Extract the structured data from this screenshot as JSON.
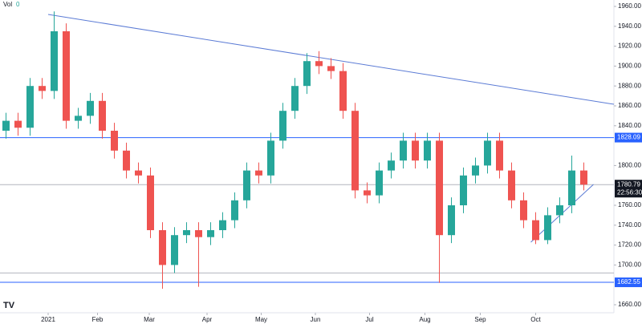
{
  "chart_data": {
    "type": "candlestick",
    "indicator": {
      "name": "Vol",
      "value": "0"
    },
    "xlim": [
      -0.5,
      50.5
    ],
    "xticks": [
      {
        "value": 3.5,
        "label": "2021"
      },
      {
        "value": 7.6,
        "label": "Feb"
      },
      {
        "value": 11.9,
        "label": "Mar"
      },
      {
        "value": 16.7,
        "label": "Apr"
      },
      {
        "value": 21.2,
        "label": "May"
      },
      {
        "value": 25.7,
        "label": "Jun"
      },
      {
        "value": 30.2,
        "label": "Jul"
      },
      {
        "value": 34.8,
        "label": "Aug"
      },
      {
        "value": 39.4,
        "label": "Sep"
      },
      {
        "value": 44.0,
        "label": "Oct"
      }
    ],
    "ylim": [
      1660,
      1960
    ],
    "yticks": [
      {
        "value": 1660,
        "label": "1660.00"
      },
      {
        "value": 1700,
        "label": "1700.00"
      },
      {
        "value": 1720,
        "label": "1720.00"
      },
      {
        "value": 1740,
        "label": "1740.00"
      },
      {
        "value": 1760,
        "label": "1760.00"
      },
      {
        "value": 1800,
        "label": "1800.00"
      },
      {
        "value": 1840,
        "label": "1840.00"
      },
      {
        "value": 1860,
        "label": "1860.00"
      },
      {
        "value": 1880,
        "label": "1880.00"
      },
      {
        "value": 1900,
        "label": "1900.00"
      },
      {
        "value": 1920,
        "label": "1920.00"
      },
      {
        "value": 1940,
        "label": "1940.00"
      },
      {
        "value": 1960,
        "label": "1960.00"
      }
    ],
    "up_color": "#26a69a",
    "down_color": "#ef5350",
    "open": [
      1835,
      1845,
      1838,
      1880,
      1875,
      1935,
      1845,
      1850,
      1865,
      1835,
      1815,
      1795,
      1790,
      1735,
      1700,
      1730,
      1735,
      1728,
      1735,
      1745,
      1765,
      1795,
      1790,
      1825,
      1855,
      1880,
      1905,
      1900,
      1895,
      1855,
      1775,
      1770,
      1795,
      1805,
      1825,
      1805,
      1825,
      1730,
      1760,
      1790,
      1800,
      1825,
      1795,
      1765,
      1745,
      1725,
      1750,
      1760,
      1795
    ],
    "high": [
      1853,
      1853,
      1888,
      1888,
      1955,
      1943,
      1858,
      1873,
      1873,
      1843,
      1823,
      1803,
      1798,
      1743,
      1738,
      1743,
      1743,
      1743,
      1753,
      1773,
      1803,
      1803,
      1833,
      1863,
      1888,
      1913,
      1915,
      1908,
      1903,
      1863,
      1783,
      1803,
      1813,
      1833,
      1833,
      1833,
      1833,
      1768,
      1798,
      1808,
      1833,
      1833,
      1803,
      1773,
      1753,
      1758,
      1768,
      1810,
      1803
    ],
    "low": [
      1827,
      1830,
      1830,
      1867,
      1867,
      1837,
      1837,
      1842,
      1827,
      1807,
      1787,
      1782,
      1727,
      1676,
      1692,
      1722,
      1678,
      1720,
      1727,
      1737,
      1757,
      1782,
      1782,
      1817,
      1847,
      1872,
      1892,
      1887,
      1847,
      1767,
      1762,
      1762,
      1787,
      1797,
      1797,
      1797,
      1682,
      1722,
      1752,
      1782,
      1792,
      1787,
      1757,
      1737,
      1721,
      1721,
      1742,
      1752,
      1775
    ],
    "close": [
      1845,
      1838,
      1880,
      1875,
      1935,
      1845,
      1850,
      1865,
      1835,
      1815,
      1795,
      1790,
      1735,
      1700,
      1730,
      1735,
      1728,
      1735,
      1745,
      1765,
      1795,
      1790,
      1825,
      1855,
      1880,
      1905,
      1900,
      1895,
      1855,
      1775,
      1770,
      1795,
      1805,
      1825,
      1805,
      1825,
      1730,
      1760,
      1790,
      1800,
      1825,
      1795,
      1765,
      1745,
      1725,
      1750,
      1760,
      1795,
      1780.79
    ],
    "price_lines": [
      {
        "value": 1828.09,
        "label": "1828.09",
        "color": "#2962ff"
      },
      {
        "value": 1682.55,
        "label": "1682.55",
        "color": "#2962ff"
      }
    ],
    "guide_lines": [
      {
        "value": 1780.79,
        "color": "#b2b5be"
      },
      {
        "value": 1692,
        "color": "#b2b5be"
      }
    ],
    "last_price": {
      "value": 1780.79,
      "label": "1780.79",
      "countdown": "22:56:30",
      "color": "#131722"
    },
    "trend_lines": [
      {
        "points": [
          [
            3.5,
            1951.9
          ],
          [
            50.5,
            1861.6
          ]
        ],
        "color": "#5b7bd5"
      },
      {
        "points": [
          [
            43.6,
            1722.9
          ],
          [
            48.8,
            1781
          ]
        ],
        "color": "#5b7bd5"
      }
    ]
  }
}
